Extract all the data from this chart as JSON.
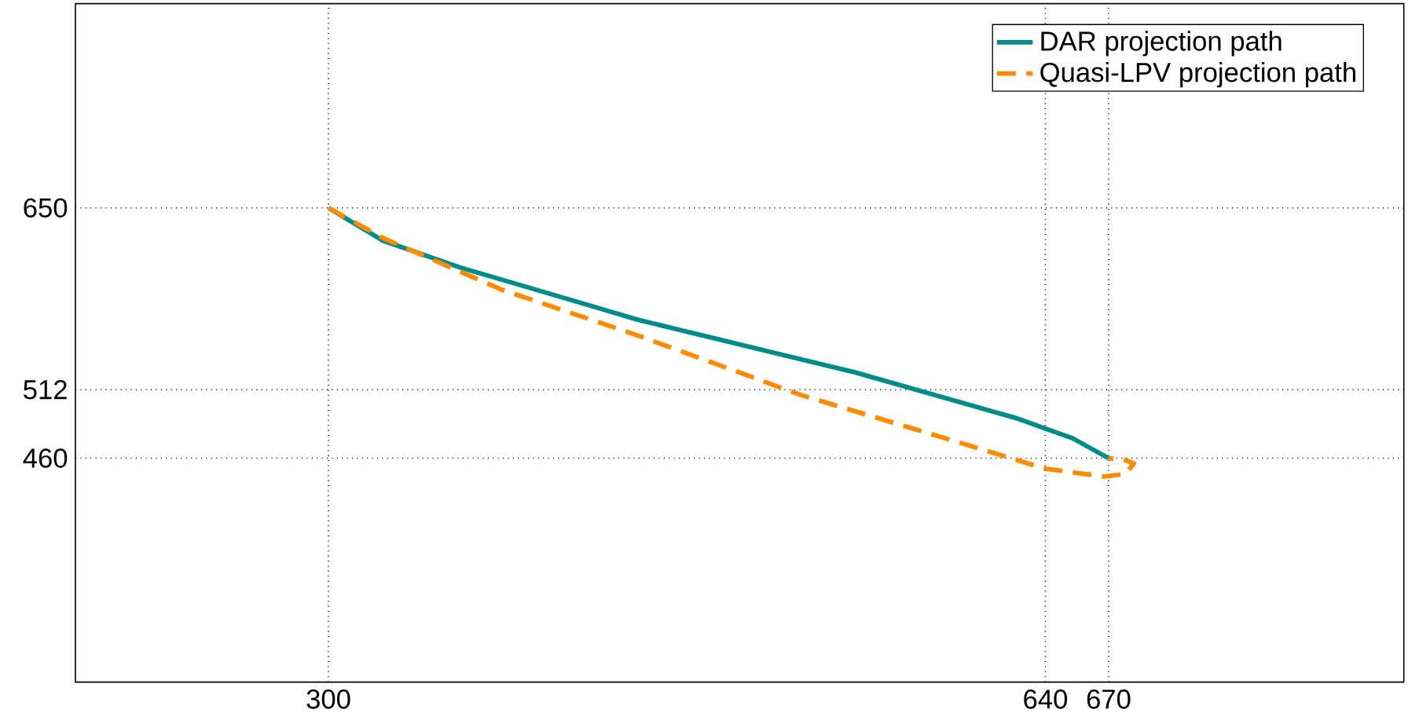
{
  "chart_data": {
    "type": "line",
    "xlim": [
      180,
      810
    ],
    "ylim": [
      290,
      805
    ],
    "xticks": [
      300,
      640,
      670
    ],
    "yticks": [
      460,
      512,
      650
    ],
    "grid": true,
    "legend": "top right",
    "series": [
      {
        "name": "DAR projection path",
        "color": "#008b8b",
        "line_style": "solid",
        "x": [
          300,
          326,
          362,
          447,
          550,
          627,
          653,
          670
        ],
        "values": [
          650,
          625,
          605,
          565,
          525,
          490,
          475,
          460
        ]
      },
      {
        "name": "Quasi-LPV projection path",
        "color": "#ff8c00",
        "line_style": "dashed",
        "x": [
          300,
          326,
          382,
          447,
          524,
          601,
          640,
          668,
          678,
          682,
          677,
          670
        ],
        "values": [
          650,
          627,
          588,
          553,
          508,
          471,
          452,
          446,
          448,
          456,
          459,
          460
        ]
      }
    ]
  }
}
